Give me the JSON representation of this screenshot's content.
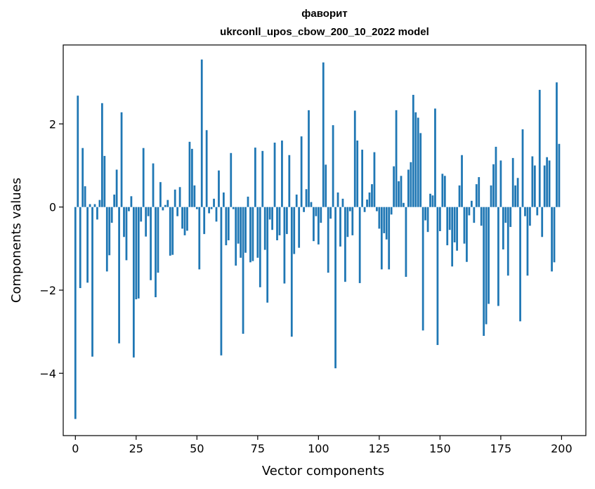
{
  "chart_data": {
    "type": "bar",
    "title": "фаворит",
    "subtitle": "ukrconll_upos_cbow_200_10_2022 model",
    "xlabel": "Vector components",
    "ylabel": "Components values",
    "xlim": [
      -5,
      210
    ],
    "ylim": [
      -5.5,
      3.9
    ],
    "xticks": [
      0,
      25,
      50,
      75,
      100,
      125,
      150,
      175,
      200
    ],
    "xtick_labels": [
      "0",
      "25",
      "50",
      "75",
      "100",
      "125",
      "150",
      "175",
      "200"
    ],
    "yticks": [
      -4,
      -2,
      0,
      2
    ],
    "ytick_labels": [
      "−4",
      "−2",
      "0",
      "2"
    ],
    "grid": false,
    "bar_color": "#1f77b4",
    "x": [
      0,
      1,
      2,
      3,
      4,
      5,
      6,
      7,
      8,
      9,
      10,
      11,
      12,
      13,
      14,
      15,
      16,
      17,
      18,
      19,
      20,
      21,
      22,
      23,
      24,
      25,
      26,
      27,
      28,
      29,
      30,
      31,
      32,
      33,
      34,
      35,
      36,
      37,
      38,
      39,
      40,
      41,
      42,
      43,
      44,
      45,
      46,
      47,
      48,
      49,
      50,
      51,
      52,
      53,
      54,
      55,
      56,
      57,
      58,
      59,
      60,
      61,
      62,
      63,
      64,
      65,
      66,
      67,
      68,
      69,
      70,
      71,
      72,
      73,
      74,
      75,
      76,
      77,
      78,
      79,
      80,
      81,
      82,
      83,
      84,
      85,
      86,
      87,
      88,
      89,
      90,
      91,
      92,
      93,
      94,
      95,
      96,
      97,
      98,
      99,
      100,
      101,
      102,
      103,
      104,
      105,
      106,
      107,
      108,
      109,
      110,
      111,
      112,
      113,
      114,
      115,
      116,
      117,
      118,
      119,
      120,
      121,
      122,
      123,
      124,
      125,
      126,
      127,
      128,
      129,
      130,
      131,
      132,
      133,
      134,
      135,
      136,
      137,
      138,
      139,
      140,
      141,
      142,
      143,
      144,
      145,
      146,
      147,
      148,
      149,
      150,
      151,
      152,
      153,
      154,
      155,
      156,
      157,
      158,
      159,
      160,
      161,
      162,
      163,
      164,
      165,
      166,
      167,
      168,
      169,
      170,
      171,
      172,
      173,
      174,
      175,
      176,
      177,
      178,
      179,
      180,
      181,
      182,
      183,
      184,
      185,
      186,
      187,
      188,
      189,
      190,
      191,
      192,
      193,
      194,
      195,
      196,
      197,
      198,
      199
    ],
    "values": [
      -5.1,
      2.68,
      -1.95,
      1.42,
      0.5,
      -1.82,
      0.07,
      -3.6,
      0.07,
      -0.3,
      0.17,
      2.5,
      1.23,
      -1.55,
      -1.16,
      -0.38,
      0.3,
      0.9,
      -3.28,
      2.28,
      -0.72,
      -1.28,
      -0.1,
      0.26,
      -3.62,
      -2.22,
      -2.2,
      -0.35,
      1.42,
      -0.71,
      -0.22,
      -1.76,
      1.05,
      -2.17,
      -1.58,
      0.6,
      -0.08,
      0.05,
      0.17,
      -1.17,
      -1.15,
      0.42,
      -0.22,
      0.48,
      -0.52,
      -0.68,
      -0.57,
      1.57,
      1.4,
      0.52,
      -0.05,
      -1.5,
      3.55,
      -0.65,
      1.85,
      -0.15,
      -0.05,
      0.2,
      -0.35,
      0.88,
      -3.57,
      0.35,
      -0.92,
      -0.8,
      1.3,
      -0.05,
      -1.41,
      -0.88,
      -1.22,
      -3.05,
      -1.1,
      0.25,
      -1.33,
      -1.3,
      1.43,
      -1.22,
      -1.93,
      1.35,
      -1.03,
      -2.3,
      -0.3,
      -0.55,
      1.55,
      -0.8,
      -0.68,
      1.6,
      -1.84,
      -0.65,
      1.25,
      -3.12,
      -1.13,
      0.3,
      -0.98,
      1.7,
      -0.12,
      0.43,
      2.33,
      0.12,
      -0.82,
      -0.22,
      -0.9,
      -0.38,
      3.48,
      1.02,
      -1.58,
      -0.28,
      1.97,
      -3.88,
      0.35,
      -0.95,
      0.2,
      -1.8,
      -0.72,
      -0.1,
      -0.68,
      2.32,
      1.6,
      -1.83,
      1.38,
      -0.12,
      0.18,
      0.35,
      0.55,
      1.32,
      -0.1,
      -0.52,
      -1.5,
      -0.63,
      -0.78,
      -1.5,
      -0.18,
      0.98,
      2.33,
      0.62,
      0.75,
      0.1,
      -1.68,
      0.9,
      1.08,
      2.7,
      2.28,
      2.15,
      1.78,
      -2.97,
      -0.32,
      -0.6,
      0.32,
      0.28,
      2.37,
      -3.32,
      -0.58,
      0.8,
      0.75,
      -0.92,
      -0.55,
      -1.43,
      -0.85,
      -1.05,
      0.52,
      1.25,
      -0.88,
      -1.32,
      -0.2,
      0.15,
      -0.38,
      0.55,
      0.72,
      -0.45,
      -3.1,
      -2.82,
      -2.33,
      0.52,
      1.03,
      1.45,
      -2.38,
      1.12,
      -1.02,
      -0.38,
      -1.65,
      -0.48,
      1.18,
      0.52,
      0.7,
      -2.75,
      1.87,
      -0.22,
      -1.65,
      -0.45,
      1.22,
      1.0,
      -0.2,
      2.82,
      -0.72,
      1.0,
      1.2,
      1.12,
      -1.55,
      -1.33,
      3.0,
      1.52
    ]
  }
}
